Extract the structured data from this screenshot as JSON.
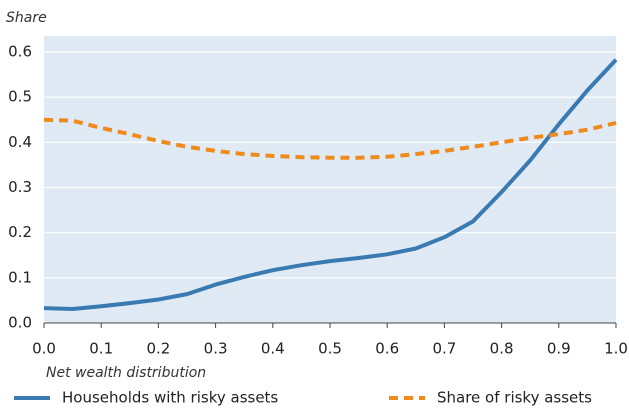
{
  "chart_data": {
    "type": "line",
    "ylabel": "Share",
    "xlabel": "Net wealth distribution",
    "x": [
      0,
      0.05,
      0.1,
      0.15,
      0.2,
      0.25,
      0.3,
      0.35,
      0.4,
      0.45,
      0.5,
      0.55,
      0.6,
      0.65,
      0.7,
      0.75,
      0.8,
      0.85,
      0.9,
      0.95,
      1
    ],
    "series": [
      {
        "name": "Households with risky assets",
        "color": "#3a7ab3",
        "values": [
          0.033,
          0.031,
          0.037,
          0.044,
          0.052,
          0.064,
          0.085,
          0.102,
          0.117,
          0.128,
          0.137,
          0.144,
          0.152,
          0.165,
          0.19,
          0.225,
          0.29,
          0.36,
          0.44,
          0.515,
          0.583
        ]
      },
      {
        "name": "Share of risky assets",
        "color": "#f08a1c",
        "dashed": true,
        "values": [
          0.45,
          0.448,
          0.432,
          0.418,
          0.403,
          0.39,
          0.381,
          0.374,
          0.37,
          0.367,
          0.366,
          0.366,
          0.368,
          0.374,
          0.381,
          0.39,
          0.4,
          0.41,
          0.418,
          0.428,
          0.443
        ]
      }
    ],
    "xlim": [
      0,
      1
    ],
    "xticks": [
      {
        "value": 0,
        "label": "0.0"
      },
      0.1,
      0.2,
      0.3,
      0.4,
      0.5,
      0.6,
      0.7,
      0.8,
      0.9,
      {
        "value": 1,
        "label": "1.0"
      }
    ],
    "ylim": [
      0,
      0.6
    ],
    "yticks": [
      {
        "value": 0,
        "label": "0.0"
      },
      0.1,
      0.2,
      0.3,
      0.4,
      0.5,
      0.6
    ],
    "grid": true,
    "legend": "bottom"
  }
}
